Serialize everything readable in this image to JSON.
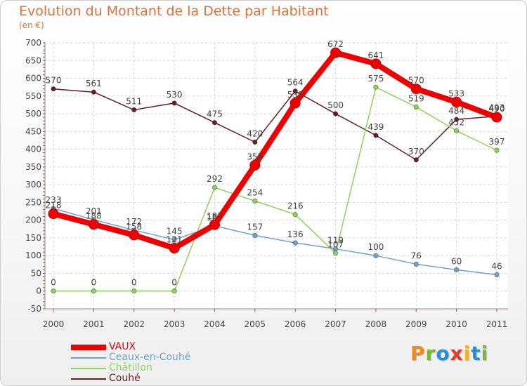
{
  "header": {
    "title": "Evolution du Montant de la Dette par Habitant",
    "unit": "(en €)"
  },
  "logo": {
    "text": "Proxiti",
    "colors": [
      "#f08a1c",
      "#7bb637",
      "#2a8fd1",
      "#e23b2e",
      "#f5b21e",
      "#2a8fd1",
      "#7bb637"
    ]
  },
  "chart_data": {
    "type": "line",
    "title": "Evolution du Montant de la Dette par Habitant",
    "ylabel": "(en €)",
    "xlabel": "",
    "x": [
      "2000",
      "2001",
      "2002",
      "2003",
      "2004",
      "2005",
      "2006",
      "2007",
      "2008",
      "2009",
      "2010",
      "2011"
    ],
    "ylim": [
      -50,
      700
    ],
    "yticks": [
      -50,
      0,
      50,
      100,
      150,
      200,
      250,
      300,
      350,
      400,
      450,
      500,
      550,
      600,
      650,
      700
    ],
    "grid": true,
    "legend_position": "bottom",
    "series": [
      {
        "name": "Couhé",
        "color": "#6b1e1e",
        "values": [
          570,
          561,
          511,
          530,
          475,
          420,
          564,
          500,
          439,
          370,
          484,
          493
        ]
      },
      {
        "name": "Châtillon",
        "color": "#8fd45a",
        "values": [
          0,
          0,
          0,
          0,
          292,
          254,
          216,
          107,
          575,
          519,
          452,
          397
        ]
      },
      {
        "name": "Ceaux-en-Couhé",
        "color": "#6ea3cf",
        "values": [
          233,
          201,
          172,
          145,
          184,
          157,
          136,
          119,
          100,
          76,
          60,
          46
        ]
      },
      {
        "name": "VAUX",
        "color": "#ee0000",
        "values": [
          218,
          188,
          158,
          121,
          187,
          355,
          530,
          672,
          641,
          570,
          533,
          490
        ]
      }
    ]
  }
}
